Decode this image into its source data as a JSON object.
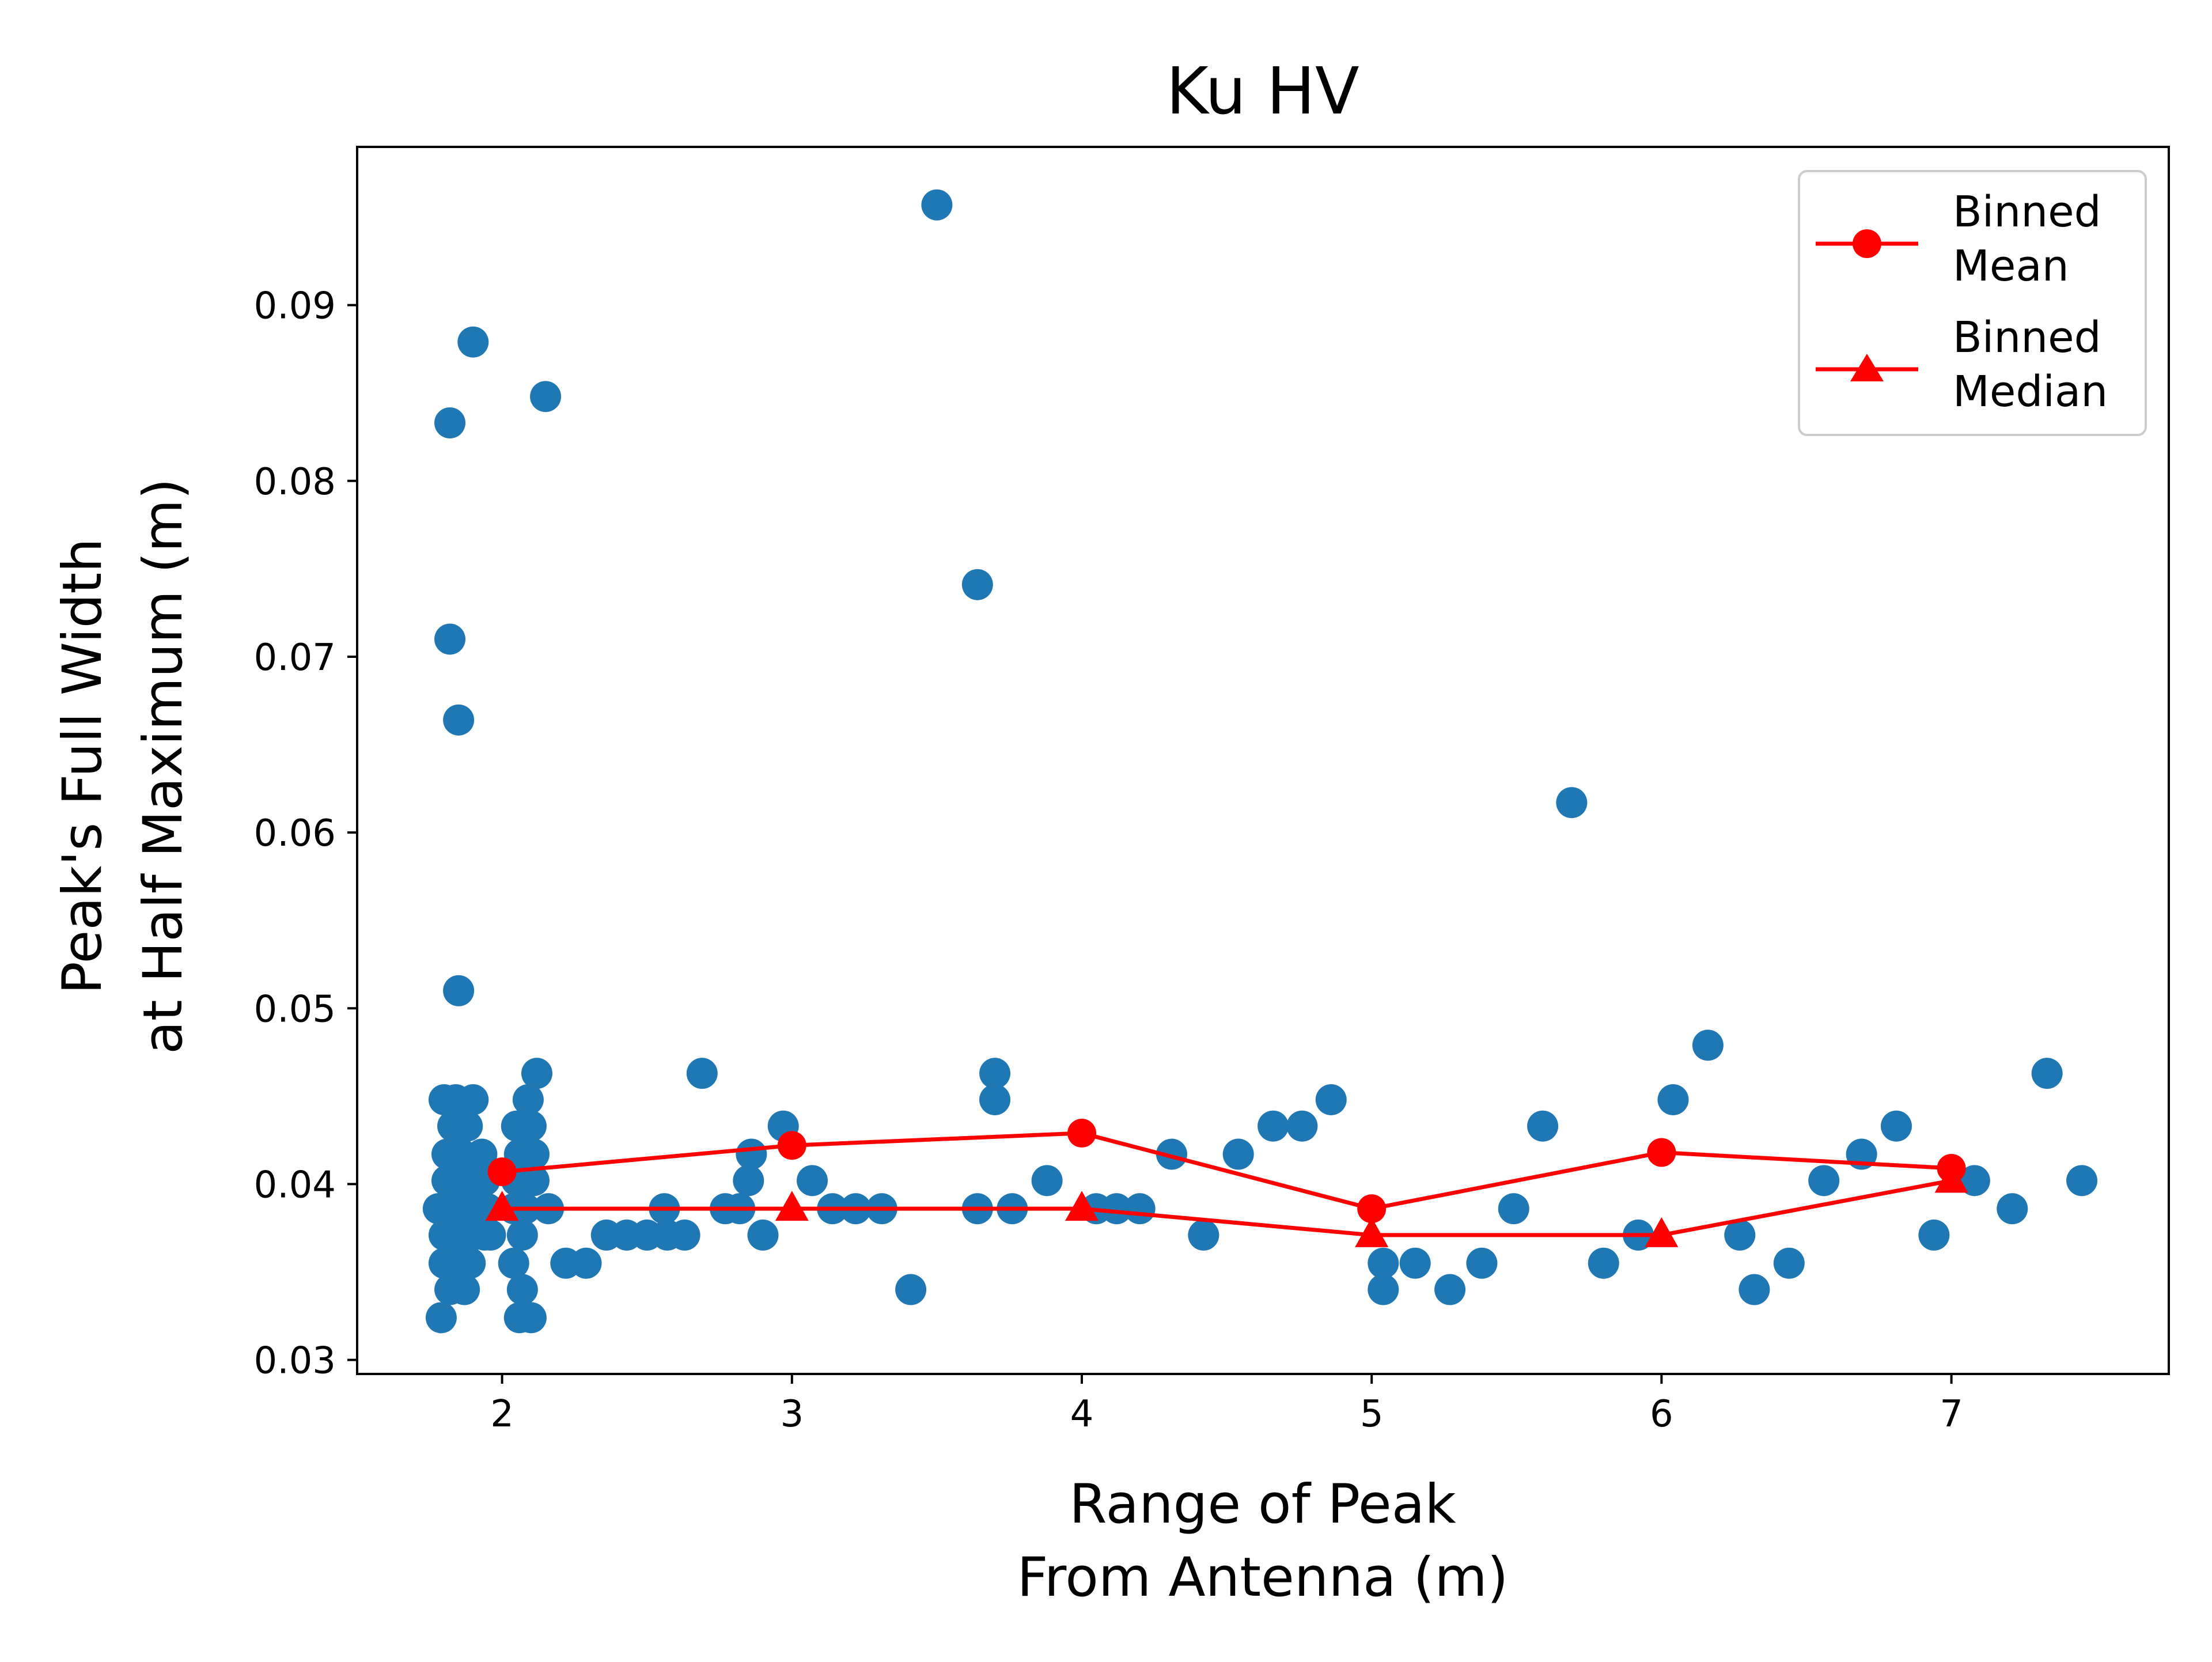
{
  "chart_data": {
    "type": "scatter",
    "title": "Ku HV",
    "xlabel_lines": [
      "Range of Peak",
      "From Antenna (m)"
    ],
    "ylabel_lines": [
      "Peak's Full Width",
      "at Half Maximum (m)"
    ],
    "xlim": [
      1.5,
      7.75
    ],
    "ylim": [
      0.0292,
      0.099
    ],
    "xticks": [
      2,
      3,
      4,
      5,
      6,
      7
    ],
    "xtick_labels": [
      "2",
      "3",
      "4",
      "5",
      "6",
      "7"
    ],
    "yticks": [
      0.03,
      0.04,
      0.05,
      0.06,
      0.07,
      0.08,
      0.09
    ],
    "ytick_labels": [
      "0.03",
      "0.04",
      "0.05",
      "0.06",
      "0.07",
      "0.08",
      "0.09"
    ],
    "grid": false,
    "legend_position": "top-right",
    "colors": {
      "scatter": "#1f77b4",
      "binned": "#ff0000",
      "axes": "#000000"
    },
    "scatter_points": [
      [
        1.78,
        0.0386
      ],
      [
        1.79,
        0.0324
      ],
      [
        1.8,
        0.0355
      ],
      [
        1.8,
        0.0371
      ],
      [
        1.8,
        0.0448
      ],
      [
        1.81,
        0.0402
      ],
      [
        1.81,
        0.0417
      ],
      [
        1.82,
        0.034
      ],
      [
        1.82,
        0.0833
      ],
      [
        1.82,
        0.071
      ],
      [
        1.83,
        0.0386
      ],
      [
        1.83,
        0.0433
      ],
      [
        1.84,
        0.0448
      ],
      [
        1.84,
        0.0355
      ],
      [
        1.85,
        0.051
      ],
      [
        1.85,
        0.0664
      ],
      [
        1.85,
        0.0371
      ],
      [
        1.86,
        0.0402
      ],
      [
        1.86,
        0.0417
      ],
      [
        1.87,
        0.034
      ],
      [
        1.87,
        0.0386
      ],
      [
        1.88,
        0.0433
      ],
      [
        1.89,
        0.0355
      ],
      [
        1.9,
        0.0879
      ],
      [
        1.9,
        0.0448
      ],
      [
        1.9,
        0.0371
      ],
      [
        1.91,
        0.0402
      ],
      [
        1.92,
        0.0386
      ],
      [
        1.93,
        0.0417
      ],
      [
        1.94,
        0.0371
      ],
      [
        1.94,
        0.0402
      ],
      [
        1.95,
        0.0386
      ],
      [
        1.96,
        0.0371
      ],
      [
        2.04,
        0.0386
      ],
      [
        2.04,
        0.0355
      ],
      [
        2.05,
        0.0433
      ],
      [
        2.05,
        0.0402
      ],
      [
        2.06,
        0.0324
      ],
      [
        2.06,
        0.0417
      ],
      [
        2.07,
        0.0371
      ],
      [
        2.07,
        0.034
      ],
      [
        2.08,
        0.0386
      ],
      [
        2.09,
        0.0448
      ],
      [
        2.1,
        0.0433
      ],
      [
        2.1,
        0.0324
      ],
      [
        2.11,
        0.0402
      ],
      [
        2.11,
        0.0417
      ],
      [
        2.12,
        0.0463
      ],
      [
        2.15,
        0.0848
      ],
      [
        2.16,
        0.0386
      ],
      [
        2.22,
        0.0355
      ],
      [
        2.29,
        0.0355
      ],
      [
        2.36,
        0.0371
      ],
      [
        2.43,
        0.0371
      ],
      [
        2.5,
        0.0371
      ],
      [
        2.56,
        0.0386
      ],
      [
        2.57,
        0.0371
      ],
      [
        2.63,
        0.0371
      ],
      [
        2.69,
        0.0463
      ],
      [
        2.77,
        0.0386
      ],
      [
        2.82,
        0.0386
      ],
      [
        2.85,
        0.0402
      ],
      [
        2.86,
        0.0417
      ],
      [
        2.9,
        0.0371
      ],
      [
        2.97,
        0.0433
      ],
      [
        3.07,
        0.0402
      ],
      [
        3.14,
        0.0386
      ],
      [
        3.22,
        0.0386
      ],
      [
        3.31,
        0.0386
      ],
      [
        3.41,
        0.034
      ],
      [
        3.5,
        0.0957
      ],
      [
        3.64,
        0.0741
      ],
      [
        3.64,
        0.0386
      ],
      [
        3.7,
        0.0463
      ],
      [
        3.7,
        0.0448
      ],
      [
        3.76,
        0.0386
      ],
      [
        3.88,
        0.0402
      ],
      [
        4.05,
        0.0386
      ],
      [
        4.12,
        0.0386
      ],
      [
        4.2,
        0.0386
      ],
      [
        4.31,
        0.0417
      ],
      [
        4.42,
        0.0371
      ],
      [
        4.54,
        0.0417
      ],
      [
        4.66,
        0.0433
      ],
      [
        4.76,
        0.0433
      ],
      [
        4.86,
        0.0448
      ],
      [
        5.04,
        0.0355
      ],
      [
        5.04,
        0.034
      ],
      [
        5.15,
        0.0355
      ],
      [
        5.27,
        0.034
      ],
      [
        5.38,
        0.0355
      ],
      [
        5.49,
        0.0386
      ],
      [
        5.59,
        0.0433
      ],
      [
        5.69,
        0.0617
      ],
      [
        5.8,
        0.0355
      ],
      [
        5.92,
        0.0371
      ],
      [
        6.04,
        0.0448
      ],
      [
        6.16,
        0.0479
      ],
      [
        6.27,
        0.0371
      ],
      [
        6.32,
        0.034
      ],
      [
        6.44,
        0.0355
      ],
      [
        6.56,
        0.0402
      ],
      [
        6.69,
        0.0417
      ],
      [
        6.81,
        0.0433
      ],
      [
        6.94,
        0.0371
      ],
      [
        7.08,
        0.0402
      ],
      [
        7.21,
        0.0386
      ],
      [
        7.33,
        0.0463
      ],
      [
        7.45,
        0.0402
      ]
    ],
    "series": [
      {
        "name": "Binned Mean",
        "legend_lines": [
          "Binned",
          "Mean"
        ],
        "marker": "circle",
        "x": [
          2,
          3,
          4,
          5,
          6,
          7
        ],
        "y": [
          0.0407,
          0.0422,
          0.0429,
          0.0386,
          0.0418,
          0.0409
        ]
      },
      {
        "name": "Binned Median",
        "legend_lines": [
          "Binned",
          "Median"
        ],
        "marker": "triangle",
        "x": [
          2,
          3,
          4,
          5,
          6,
          7
        ],
        "y": [
          0.0386,
          0.0386,
          0.0386,
          0.0371,
          0.0371,
          0.0402
        ]
      }
    ]
  }
}
